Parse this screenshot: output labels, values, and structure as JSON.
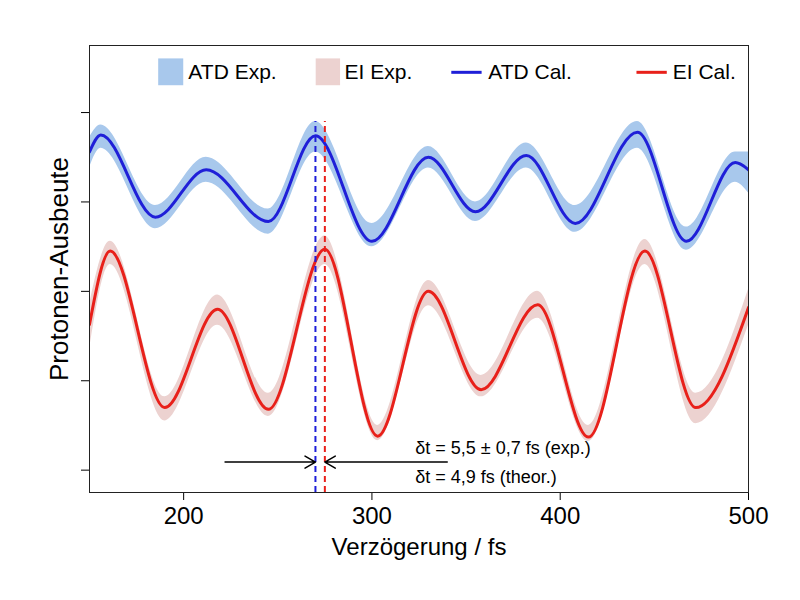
{
  "chart_data": {
    "type": "line",
    "x_label": "Verzögerung / fs",
    "y_label": "Protonen-Ausbeute",
    "xlim": [
      150,
      500
    ],
    "xticks": [
      200,
      300,
      400,
      500
    ],
    "ylim": [
      -0.25,
      4.75
    ],
    "yticks": [
      0,
      1,
      2,
      3,
      4
    ],
    "tick_labels": "x",
    "legend": "top-right",
    "series": [
      {
        "name": "ATD Exp.",
        "type": "area",
        "color": "#a8c8ec",
        "x": [
          150,
          156,
          185,
          212,
          245,
          270,
          300,
          330,
          355,
          382,
          408,
          441,
          467,
          493,
          500
        ],
        "lower": [
          3.38,
          3.6,
          2.7,
          3.22,
          2.64,
          3.56,
          2.5,
          3.38,
          2.78,
          3.38,
          2.66,
          3.6,
          2.46,
          3.22,
          3.1
        ],
        "upper": [
          3.72,
          3.86,
          2.96,
          3.5,
          2.92,
          3.9,
          2.76,
          3.62,
          3.0,
          3.66,
          2.96,
          3.9,
          2.72,
          3.56,
          3.56
        ]
      },
      {
        "name": "EI Exp.",
        "type": "area",
        "color": "#ecd2d0",
        "x": [
          150,
          161,
          190,
          218,
          245,
          275,
          303,
          330,
          358,
          388,
          415,
          445,
          472,
          500
        ],
        "lower": [
          1.35,
          2.3,
          0.55,
          1.62,
          0.6,
          2.3,
          0.33,
          1.84,
          0.82,
          1.7,
          0.32,
          2.3,
          0.52,
          1.62
        ],
        "upper": [
          1.85,
          2.56,
          0.82,
          1.96,
          0.86,
          2.62,
          0.5,
          2.12,
          1.06,
          2.0,
          0.5,
          2.58,
          0.86,
          2.02
        ]
      },
      {
        "name": "ATD Cal.",
        "type": "line",
        "color": "#1f1fd8",
        "x": [
          150,
          156,
          185,
          212,
          245,
          270,
          300,
          330,
          355,
          382,
          408,
          441,
          467,
          493,
          500
        ],
        "values": [
          3.56,
          3.75,
          2.83,
          3.36,
          2.78,
          3.74,
          2.56,
          3.5,
          2.89,
          3.52,
          2.76,
          3.78,
          2.56,
          3.44,
          3.36
        ]
      },
      {
        "name": "EI Cal.",
        "type": "line",
        "color": "#e8201a",
        "x": [
          150,
          161,
          190,
          218,
          245,
          275,
          303,
          330,
          358,
          388,
          415,
          445,
          472,
          500
        ],
        "values": [
          1.63,
          2.45,
          0.7,
          1.8,
          0.68,
          2.47,
          0.38,
          2.0,
          0.9,
          1.85,
          0.37,
          2.45,
          0.7,
          1.82
        ]
      }
    ],
    "vlines": [
      {
        "x": 270,
        "color": "#1f1fd8",
        "line_style": "dashed"
      },
      {
        "x": 275,
        "color": "#e8201a",
        "line_style": "dashed"
      }
    ],
    "arrows": [
      {
        "x1": 222,
        "x2": 270,
        "y": 0.09
      },
      {
        "x1": 340,
        "x2": 275,
        "y": 0.09
      }
    ],
    "annotations": [
      {
        "text": "δt = 5,5 ± 0,7 fs (exp.)",
        "x": 323,
        "y": 0.25
      },
      {
        "text": "δt = 4,9 fs (theor.)",
        "x": 323,
        "y": -0.08
      }
    ]
  }
}
